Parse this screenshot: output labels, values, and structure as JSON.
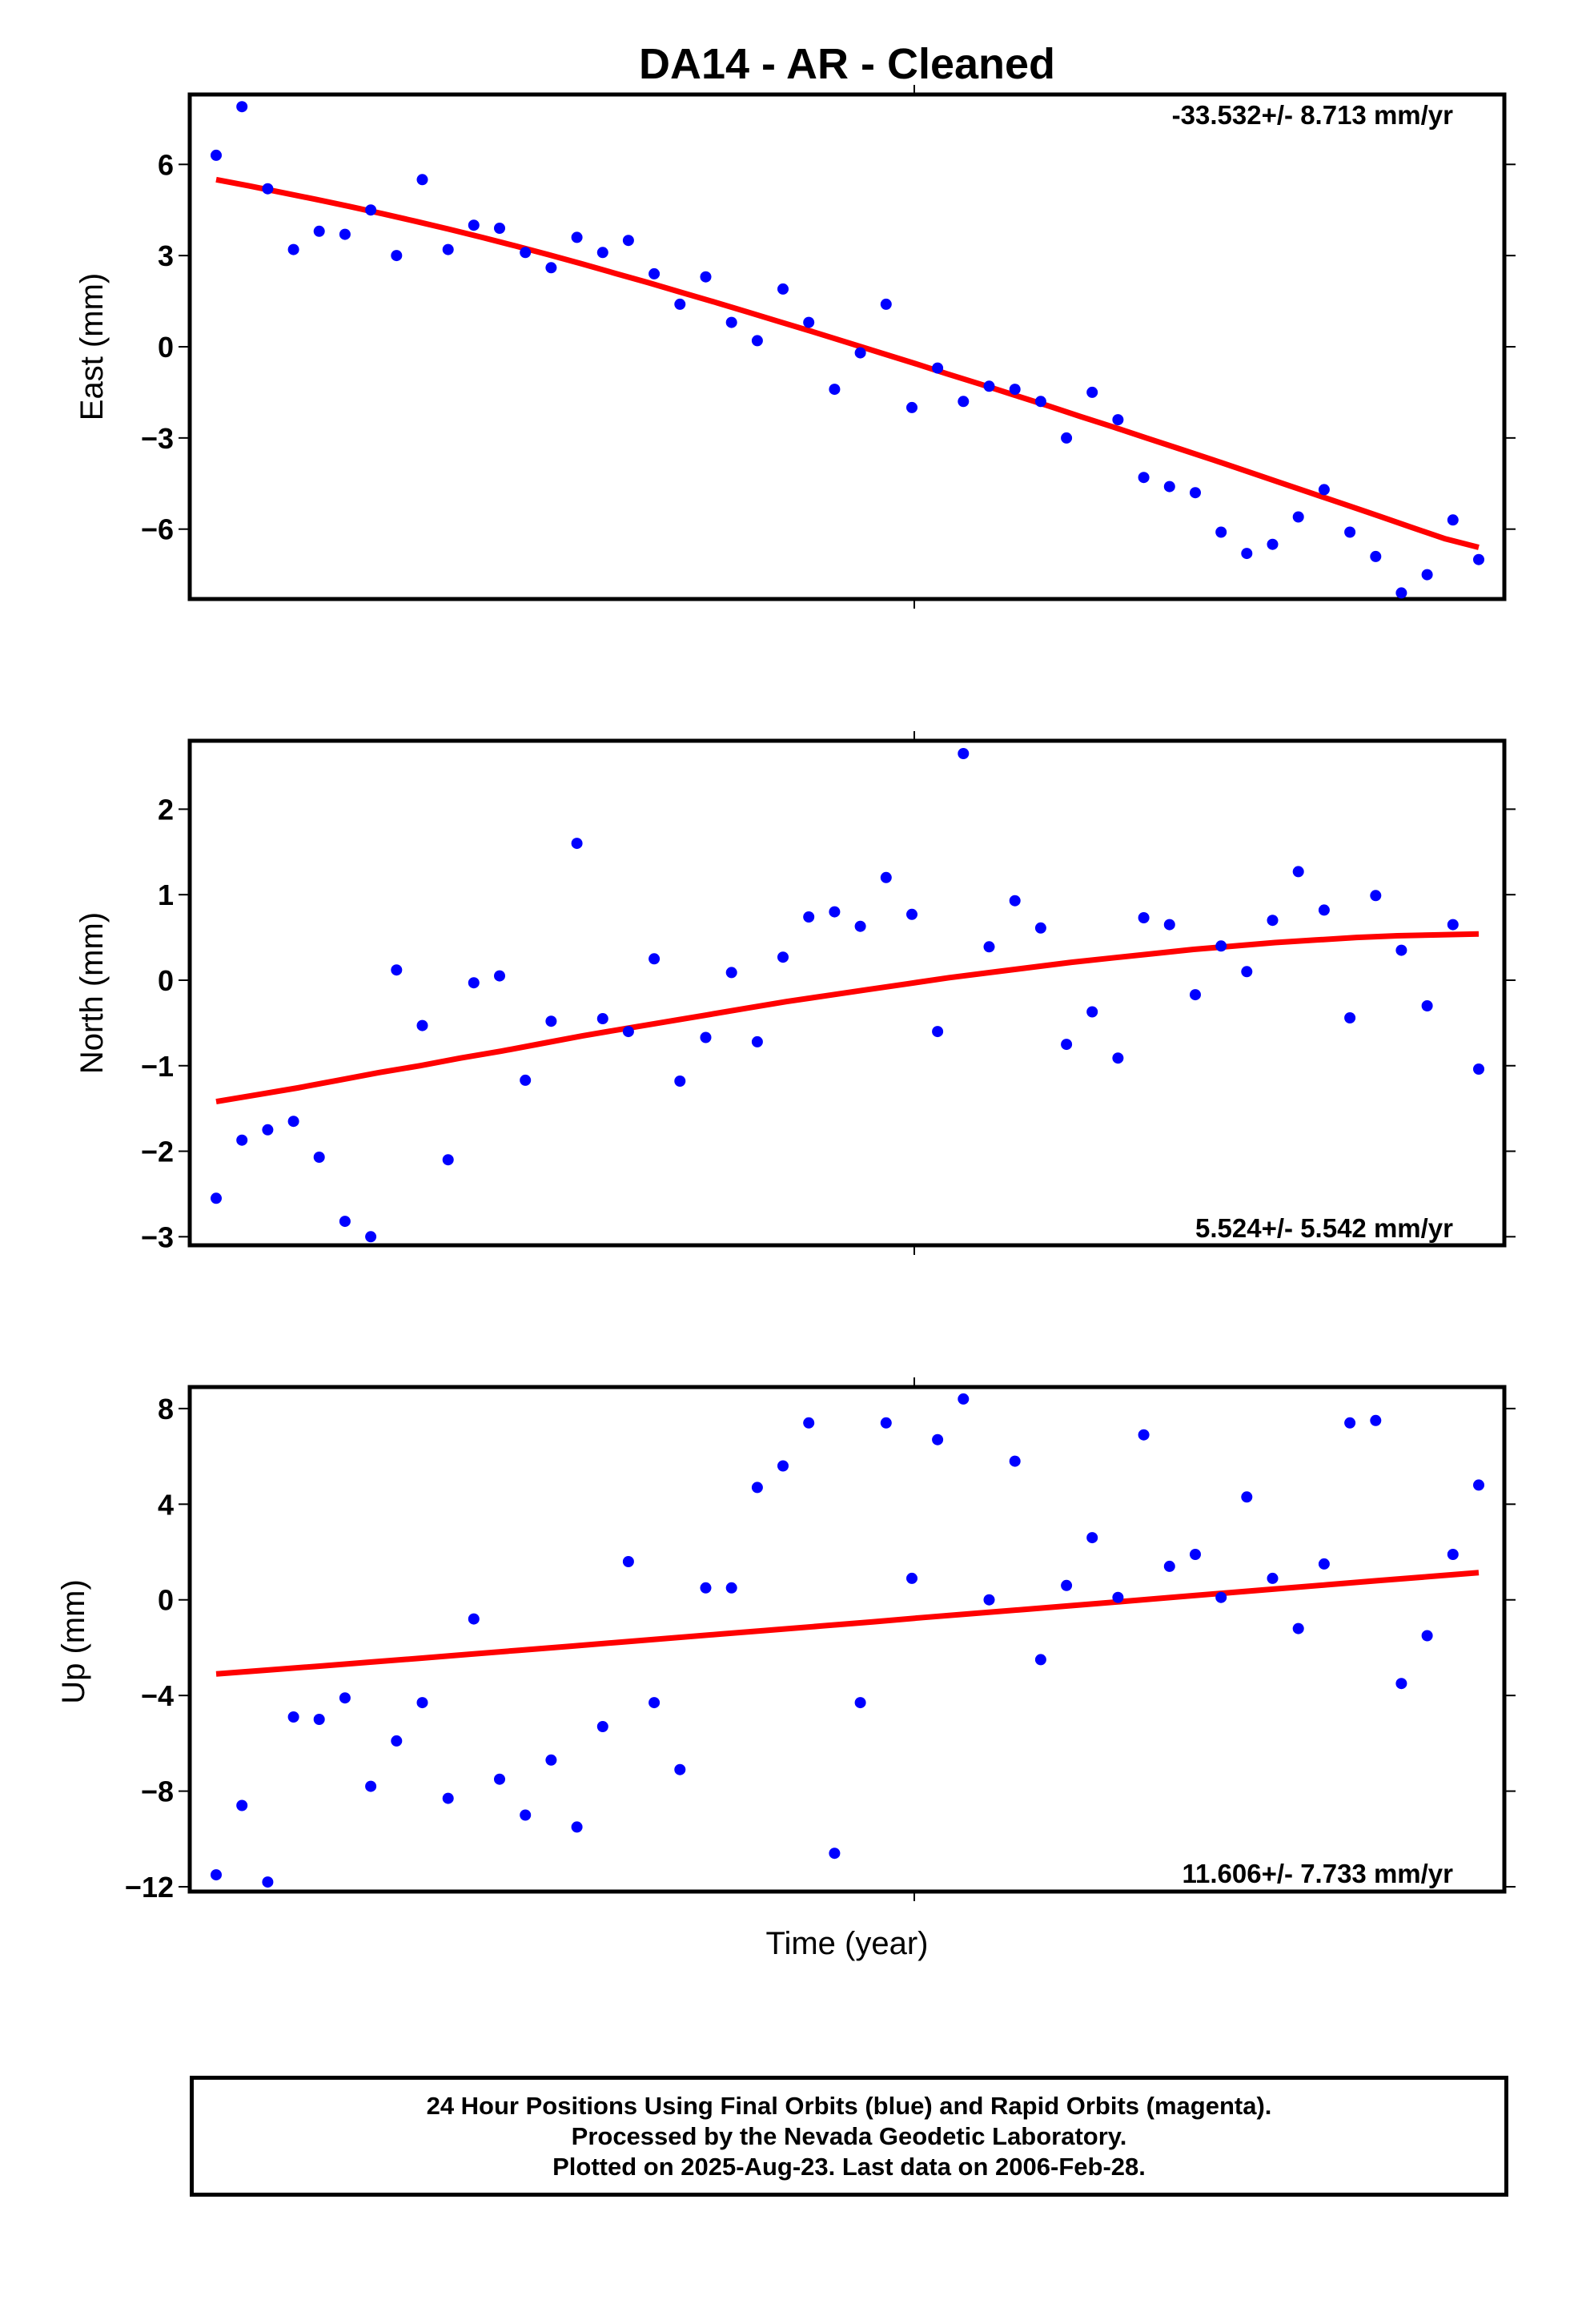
{
  "chart_data": {
    "type": "scatter",
    "title": "DA14  - AR - Cleaned",
    "xlabel": "Time (year)",
    "panels": [
      {
        "id": "east",
        "ylabel": "East (mm)",
        "ylim": [
          -8.3,
          8.3
        ],
        "yticks": [
          6,
          3,
          0,
          -3,
          -6
        ],
        "ytick_labels": [
          "6",
          "3",
          "0",
          "−3",
          "−6"
        ],
        "rate": "-33.532+/- 8.713 mm/yr",
        "rate_position": "top-right",
        "points": [
          6.3,
          7.9,
          5.2,
          3.2,
          3.8,
          3.7,
          4.5,
          3.0,
          5.5,
          3.2,
          4.0,
          3.9,
          3.1,
          2.6,
          3.6,
          3.1,
          3.5,
          2.4,
          1.4,
          2.3,
          0.8,
          0.2,
          1.9,
          0.8,
          -1.4,
          -0.2,
          1.4,
          -2.0,
          -0.7,
          -1.8,
          -1.3,
          -1.4,
          -1.8,
          -3.0,
          -1.5,
          -2.4,
          -4.3,
          -4.6,
          -4.8,
          -6.1,
          -6.8,
          -6.5,
          -5.6,
          -4.7,
          -6.1,
          -6.9,
          -8.1,
          -7.5,
          -5.7,
          -7.0
        ],
        "trend": [
          5.5,
          5.29,
          5.07,
          4.85,
          4.62,
          4.38,
          4.13,
          3.87,
          3.6,
          3.32,
          3.03,
          2.73,
          2.42,
          2.11,
          1.79,
          1.47,
          1.14,
          0.81,
          0.48,
          0.14,
          -0.2,
          -0.54,
          -0.89,
          -1.23,
          -1.58,
          -1.93,
          -2.29,
          -2.64,
          -3.0,
          -3.36,
          -3.72,
          -4.09,
          -4.46,
          -4.83,
          -5.2,
          -5.57,
          -5.95,
          -6.32,
          -6.6
        ]
      },
      {
        "id": "north",
        "ylabel": "North (mm)",
        "ylim": [
          -3.1,
          2.8
        ],
        "yticks": [
          2,
          1,
          0,
          -1,
          -2,
          -3
        ],
        "ytick_labels": [
          "2",
          "1",
          "0",
          "−1",
          "−2",
          "−3"
        ],
        "rate": "5.524+/- 5.542 mm/yr",
        "rate_position": "bottom-right",
        "points": [
          -2.55,
          -1.87,
          -1.75,
          -1.65,
          -2.07,
          -2.82,
          -3.0,
          0.12,
          -0.53,
          -2.1,
          -0.03,
          0.05,
          -1.17,
          -0.48,
          1.6,
          -0.45,
          -0.6,
          0.25,
          -1.18,
          -0.67,
          0.09,
          -0.72,
          0.27,
          0.74,
          0.8,
          0.63,
          1.2,
          0.77,
          -0.6,
          2.65,
          0.39,
          0.93,
          0.61,
          -0.75,
          -0.37,
          -0.91,
          0.73,
          0.65,
          -0.17,
          0.4,
          0.1,
          0.7,
          1.27,
          0.82,
          -0.44,
          0.99,
          0.35,
          -0.3,
          0.65,
          -1.04
        ],
        "trend": [
          -1.42,
          -1.34,
          -1.26,
          -1.17,
          -1.08,
          -1.0,
          -0.91,
          -0.83,
          -0.74,
          -0.65,
          -0.57,
          -0.49,
          -0.41,
          -0.33,
          -0.25,
          -0.18,
          -0.11,
          -0.04,
          0.03,
          0.09,
          0.15,
          0.21,
          0.26,
          0.31,
          0.36,
          0.4,
          0.44,
          0.47,
          0.5,
          0.52,
          0.53,
          0.54
        ]
      },
      {
        "id": "up",
        "ylabel": "Up (mm)",
        "ylim": [
          -12.2,
          8.9
        ],
        "yticks": [
          8,
          4,
          0,
          -4,
          -8,
          -12
        ],
        "ytick_labels": [
          "8",
          "4",
          "0",
          "−4",
          "−8",
          "−12"
        ],
        "rate": "11.606+/- 7.733 mm/yr",
        "rate_position": "bottom-right",
        "points": [
          -11.5,
          -8.6,
          -11.8,
          -4.9,
          -5.0,
          -4.1,
          -7.8,
          -5.9,
          -4.3,
          -8.3,
          -0.8,
          -7.5,
          -9.0,
          -6.7,
          -9.5,
          -5.3,
          1.6,
          -4.3,
          -7.1,
          0.5,
          0.5,
          4.7,
          5.6,
          7.4,
          -10.6,
          -4.3,
          7.4,
          0.9,
          6.7,
          8.4,
          0.0,
          5.8,
          -2.5,
          0.6,
          2.6,
          0.1,
          6.9,
          1.4,
          1.9,
          0.1,
          4.3,
          0.9,
          -1.2,
          1.5,
          7.4,
          7.5,
          -3.5,
          -1.5,
          1.9,
          4.8
        ],
        "trend": [
          -3.1,
          -2.94,
          -2.78,
          -2.61,
          -2.45,
          -2.28,
          -2.11,
          -1.94,
          -1.77,
          -1.6,
          -1.43,
          -1.26,
          -1.09,
          -0.92,
          -0.74,
          -0.57,
          -0.4,
          -0.23,
          -0.06,
          0.12,
          0.29,
          0.46,
          0.63,
          0.8,
          0.97,
          1.14
        ]
      }
    ]
  },
  "colors": {
    "points": "#0000ff",
    "trend": "#ff0000",
    "frame": "#000000"
  },
  "footer": {
    "line1": "24 Hour Positions Using Final Orbits (blue) and Rapid Orbits (magenta).",
    "line2": "Processed by the Nevada Geodetic Laboratory.",
    "line3": "Plotted on 2025-Aug-23. Last data on 2006-Feb-28."
  }
}
